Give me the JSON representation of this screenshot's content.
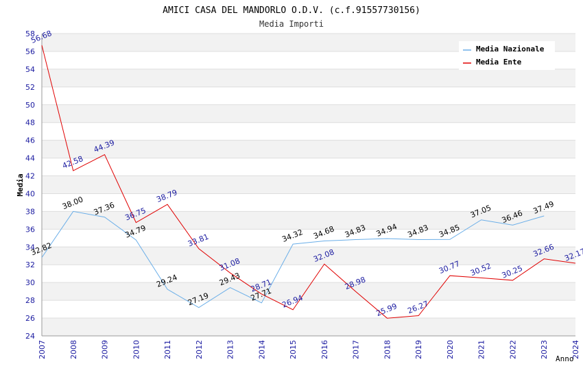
{
  "chart_data": {
    "type": "line",
    "title": "AMICI CASA DEL MANDORLO O.D.V. (c.f.91557730156)",
    "subtitle": "Media Importi",
    "xlabel": "Anno",
    "ylabel": "Media",
    "ylim": [
      24,
      58
    ],
    "yticks": [
      "24",
      "26",
      "28",
      "30",
      "32",
      "34",
      "36",
      "38",
      "40",
      "42",
      "44",
      "46",
      "48",
      "50",
      "52",
      "54",
      "56",
      "58"
    ],
    "x": [
      "2007",
      "2008",
      "2009",
      "2010",
      "2011",
      "2012",
      "2013",
      "2014",
      "2015",
      "2016",
      "2017",
      "2018",
      "2019",
      "2020",
      "2021",
      "2022",
      "2023",
      "2024"
    ],
    "grid": "horizontal, alternating bands",
    "legend_position": "top-right",
    "series": [
      {
        "name": "Media Nazionale",
        "color": "#6aaee8",
        "label_color": "#000000",
        "values": [
          32.82,
          38.0,
          37.36,
          34.79,
          29.24,
          27.19,
          29.43,
          27.71,
          34.32,
          34.68,
          34.83,
          34.94,
          34.83,
          34.85,
          37.05,
          36.46,
          37.49,
          null
        ],
        "labels": [
          "32.82",
          "38.00",
          "37.36",
          "34.79",
          "29.24",
          "27.19",
          "29.43",
          "27.71",
          "34.32",
          "34.68",
          "34.83",
          "34.94",
          "34.83",
          "34.85",
          "37.05",
          "36.46",
          "37.49",
          ""
        ]
      },
      {
        "name": "Media Ente",
        "color": "#e00000",
        "label_color": "#1a1aa0",
        "values": [
          56.68,
          42.58,
          44.39,
          36.75,
          38.79,
          33.81,
          31.08,
          28.71,
          26.94,
          32.08,
          28.98,
          25.99,
          26.27,
          30.77,
          30.52,
          30.25,
          32.66,
          32.17
        ],
        "labels": [
          "56.68",
          "42.58",
          "44.39",
          "36.75",
          "38.79",
          "33.81",
          "31.08",
          "28.71",
          "26.94",
          "32.08",
          "28.98",
          "25.99",
          "26.27",
          "30.77",
          "30.52",
          "30.25",
          "32.66",
          "32.17"
        ]
      }
    ]
  },
  "colors": {
    "axis_text": "#1a1aa0",
    "band": "#f2f2f2",
    "grid": "#dddddd"
  }
}
